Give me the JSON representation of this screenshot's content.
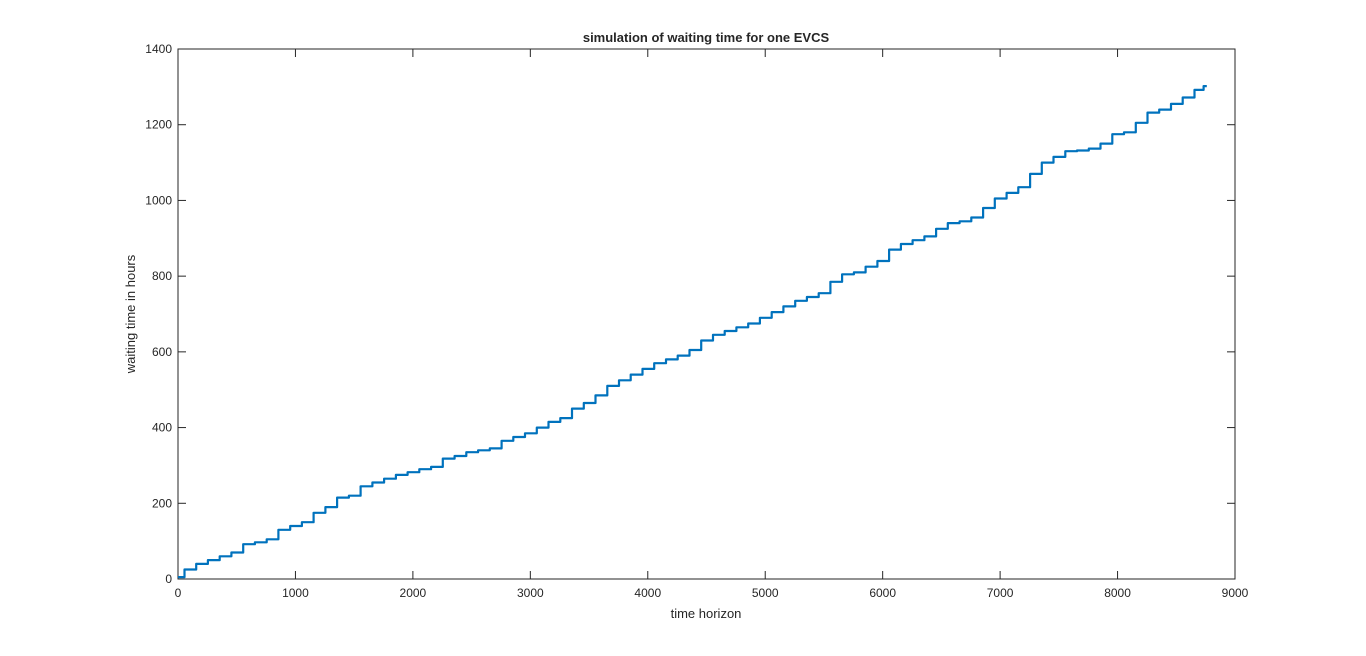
{
  "chart_data": {
    "type": "line",
    "title": "simulation of waiting time for one EVCS",
    "xlabel": "time horizon",
    "ylabel": "waiting time in hours",
    "xlim": [
      0,
      9000
    ],
    "ylim": [
      0,
      1400
    ],
    "xticks": [
      0,
      1000,
      2000,
      3000,
      4000,
      5000,
      6000,
      7000,
      8000,
      9000
    ],
    "yticks": [
      0,
      200,
      400,
      600,
      800,
      1000,
      1200,
      1400
    ],
    "grid": false,
    "legend": "none",
    "series": [
      {
        "color": "#0072BD",
        "x": [
          0,
          100,
          200,
          300,
          400,
          500,
          600,
          700,
          800,
          900,
          1000,
          1100,
          1200,
          1300,
          1400,
          1500,
          1600,
          1700,
          1800,
          1900,
          2000,
          2100,
          2200,
          2300,
          2400,
          2500,
          2600,
          2700,
          2800,
          2900,
          3000,
          3100,
          3200,
          3300,
          3400,
          3500,
          3600,
          3700,
          3800,
          3900,
          4000,
          4100,
          4200,
          4300,
          4400,
          4500,
          4600,
          4700,
          4800,
          4900,
          5000,
          5100,
          5200,
          5300,
          5400,
          5500,
          5600,
          5700,
          5800,
          5900,
          6000,
          6100,
          6200,
          6300,
          6400,
          6500,
          6600,
          6700,
          6800,
          6900,
          7000,
          7100,
          7200,
          7300,
          7400,
          7500,
          7600,
          7700,
          7800,
          7900,
          8000,
          8100,
          8200,
          8300,
          8400,
          8500,
          8600,
          8700,
          8760
        ],
        "y": [
          5,
          25,
          40,
          50,
          60,
          70,
          92,
          97,
          105,
          130,
          140,
          150,
          175,
          190,
          215,
          220,
          245,
          255,
          265,
          275,
          282,
          290,
          296,
          318,
          325,
          335,
          340,
          345,
          365,
          375,
          385,
          400,
          415,
          425,
          450,
          465,
          485,
          510,
          525,
          540,
          555,
          570,
          580,
          590,
          605,
          630,
          645,
          655,
          665,
          675,
          690,
          705,
          720,
          735,
          745,
          755,
          785,
          805,
          810,
          825,
          840,
          870,
          885,
          895,
          905,
          925,
          940,
          945,
          955,
          980,
          1005,
          1020,
          1035,
          1070,
          1100,
          1115,
          1130,
          1132,
          1137,
          1150,
          1175,
          1180,
          1205,
          1232,
          1240,
          1255,
          1272,
          1292,
          1302
        ]
      }
    ]
  }
}
